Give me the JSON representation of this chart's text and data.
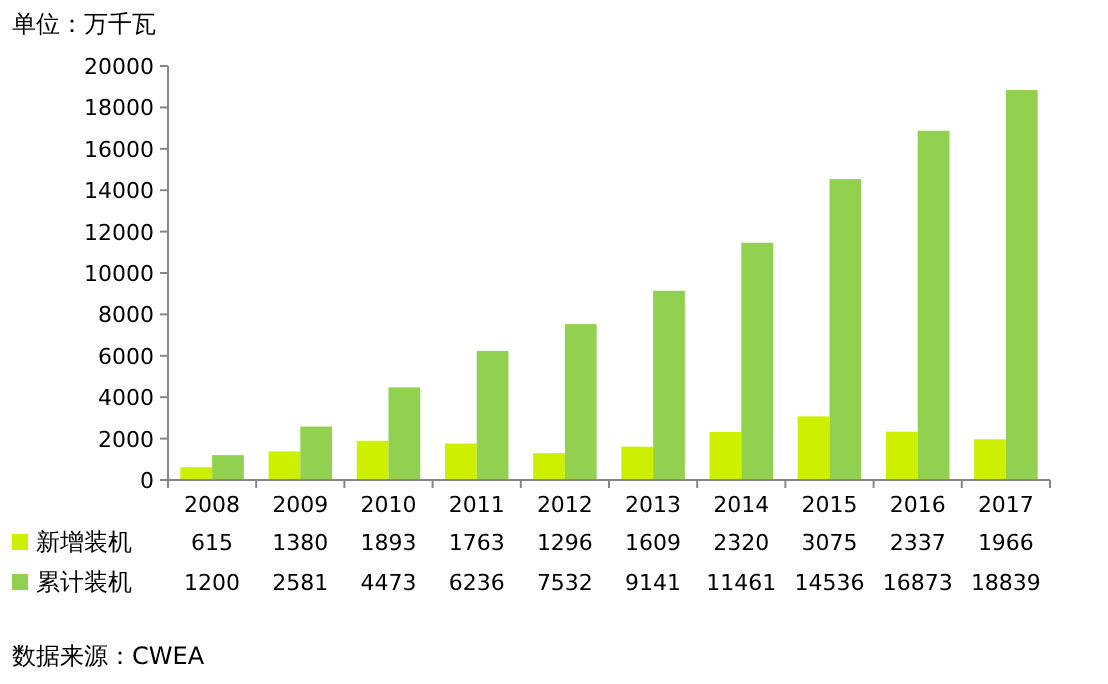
{
  "chart_data": {
    "type": "bar",
    "ylabel": "单位：万千瓦",
    "categories": [
      "2008",
      "2009",
      "2010",
      "2011",
      "2012",
      "2013",
      "2014",
      "2015",
      "2016",
      "2017"
    ],
    "series": [
      {
        "name": "新增装机",
        "color": "#ccf000",
        "values": [
          615,
          1380,
          1893,
          1763,
          1296,
          1609,
          2320,
          3075,
          2337,
          1966
        ]
      },
      {
        "name": "累计装机",
        "color": "#92d050",
        "values": [
          1200,
          2581,
          4473,
          6236,
          7532,
          9141,
          11461,
          14536,
          16873,
          18839
        ]
      }
    ],
    "ylim": [
      0,
      20000
    ],
    "yticks": [
      0,
      2000,
      4000,
      6000,
      8000,
      10000,
      12000,
      14000,
      16000,
      18000,
      20000
    ],
    "data_labels": true,
    "legend": "bottom left",
    "annotations": [
      "数据来源：CWEA"
    ]
  }
}
